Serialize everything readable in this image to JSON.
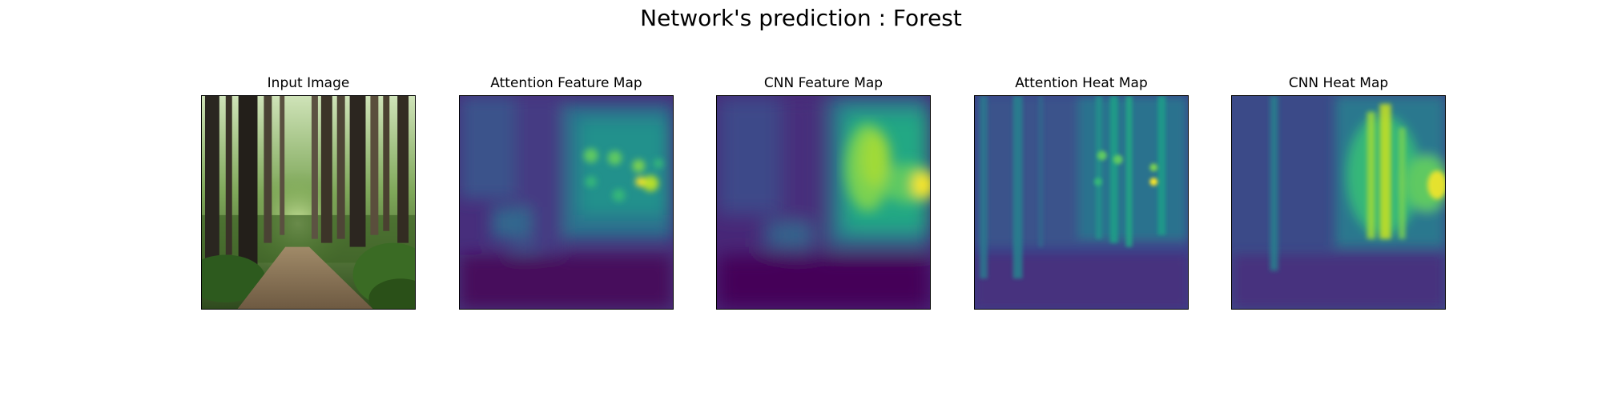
{
  "figure": {
    "title": "Network's prediction : Forest"
  },
  "panels": [
    {
      "title": "Input Image"
    },
    {
      "title": "Attention Feature Map"
    },
    {
      "title": "CNN Feature Map"
    },
    {
      "title": "Attention Heat Map"
    },
    {
      "title": "CNN Heat Map"
    }
  ],
  "colors": {
    "viridis_dark": "#440154",
    "viridis_mid": "#21918c",
    "viridis_bright": "#fde725",
    "forest_green": "#3f6b2a",
    "path_brown": "#8a7558"
  }
}
